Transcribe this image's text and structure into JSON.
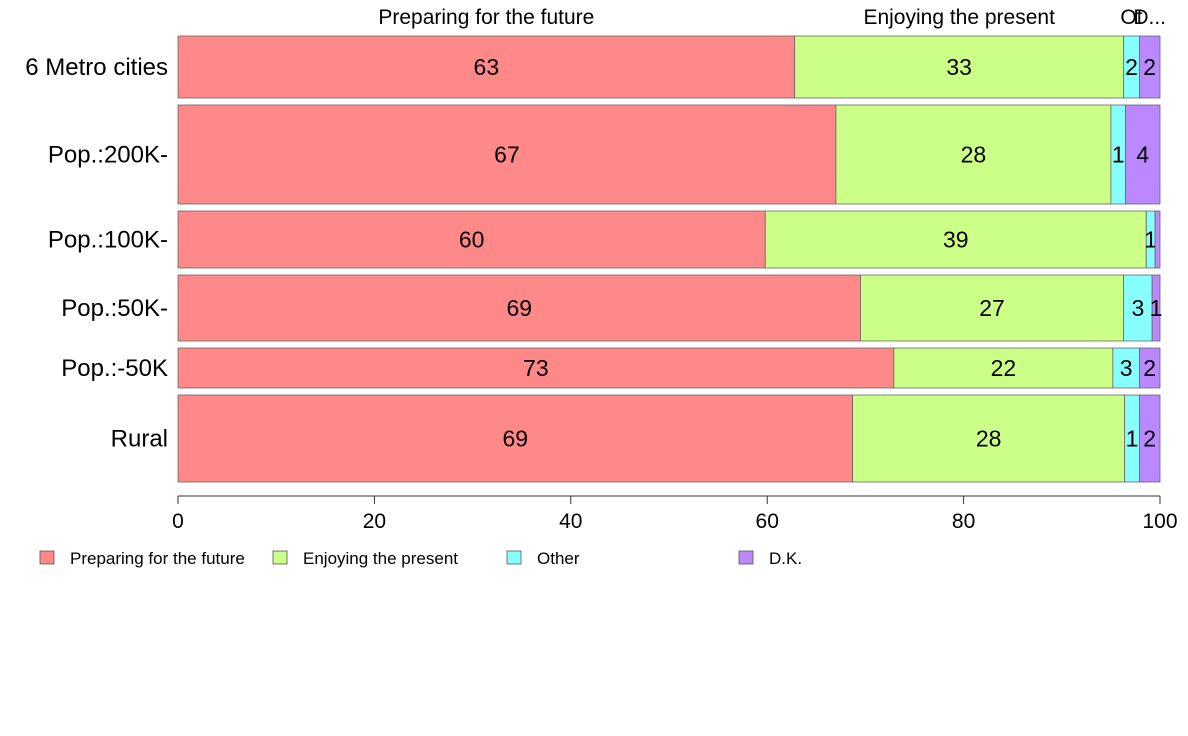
{
  "chart_data": {
    "type": "bar",
    "orientation": "horizontal",
    "stacked": true,
    "categories": [
      "6 Metro cities",
      "Pop.:200K-",
      "Pop.:100K-",
      "Pop.:50K-",
      "Pop.:-50K",
      "Rural"
    ],
    "series": [
      {
        "name": "Preparing for the future",
        "color": "#ff8888",
        "values": [
          62.8,
          67.0,
          59.8,
          69.5,
          72.9,
          68.7
        ]
      },
      {
        "name": "Enjoying the present",
        "color": "#ccff88",
        "values": [
          33.5,
          28.0,
          38.8,
          26.8,
          22.3,
          27.7
        ]
      },
      {
        "name": "Other",
        "color": "#88ffff",
        "values": [
          1.6,
          1.5,
          0.9,
          2.9,
          2.7,
          1.5
        ]
      },
      {
        "name": "D.K.",
        "color": "#bb88ff",
        "values": [
          2.1,
          3.5,
          0.5,
          0.8,
          2.1,
          2.1
        ]
      }
    ],
    "data_labels": [
      [
        "63",
        "33",
        "2",
        "2"
      ],
      [
        "67",
        "28",
        "1",
        "4"
      ],
      [
        "60",
        "39",
        "1",
        ""
      ],
      [
        "69",
        "27",
        "3",
        "1"
      ],
      [
        "73",
        "22",
        "3",
        "2"
      ],
      [
        "69",
        "28",
        "1",
        "2"
      ]
    ],
    "top_labels": [
      "Preparing for the future",
      "Enjoying the present",
      "Ot",
      "D..."
    ],
    "bar_weights": [
      62,
      99,
      57,
      66,
      40,
      87
    ],
    "xlim": [
      0,
      100
    ],
    "xticks": [
      0,
      20,
      40,
      60,
      80,
      100
    ],
    "legend_position": "bottom-left",
    "grid": false,
    "title": "",
    "xlabel": "",
    "ylabel": ""
  }
}
